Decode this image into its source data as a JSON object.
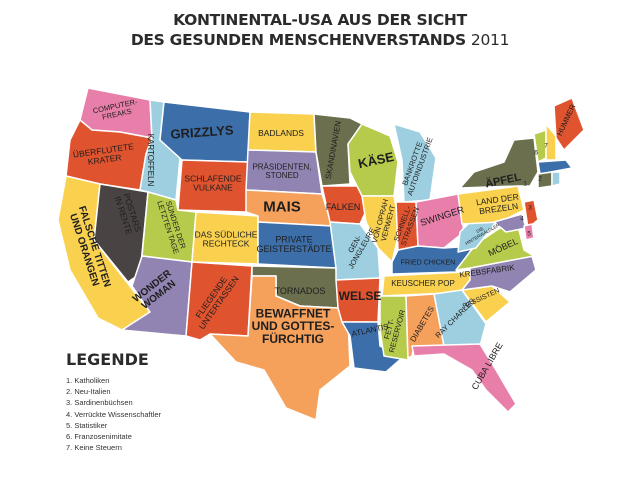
{
  "title": {
    "line1": "KONTINENTAL-USA AUS DER SICHT",
    "line2": "DES GESUNDEN MENSCHENVERSTANDS",
    "year": "2011"
  },
  "legend": {
    "heading": "LEGENDE",
    "items": [
      "1. Katholiken",
      "2. Neu-Italien",
      "3. Sardinenbüchsen",
      "4. Verrückte Wissenschaftler",
      "5. Statistiker",
      "6. Franzosenimitate",
      "7. Keine Steuern"
    ]
  },
  "labels": {
    "wa": [
      "COMPUTER-",
      "FREAKS"
    ],
    "or": [
      "ÜBERFLUTETE",
      "KRATER"
    ],
    "ca": [
      "FALSCHE TITTEN",
      "UND ORANGEN"
    ],
    "nv": [
      "POSTARS",
      "IN RENTE"
    ],
    "id": [
      "KARTOFFELN"
    ],
    "mt": [
      "GRIZZLYS"
    ],
    "wy": [
      "SCHLAFENDE",
      "VULKANE"
    ],
    "ut": [
      "SÜNDER DER",
      "LETZTEN TAGE"
    ],
    "az": [
      "WONDER",
      "WOMAN"
    ],
    "co": [
      "DAS SÜDLICHE",
      "RECHTECK"
    ],
    "nm": [
      "FLIEGENDE",
      "UNTERTASSEN"
    ],
    "nd": [
      "BADLANDS"
    ],
    "sd": [
      "PRÄSIDENTEN,",
      "STONED"
    ],
    "ne": [
      "MAIS"
    ],
    "ks": [
      "PRIVATE",
      "GEISTERSTÄDTE"
    ],
    "ok": [
      "TORNADOS"
    ],
    "tx": [
      "BEWAFFNET",
      "UND GOTTES-",
      "FÜRCHTIG"
    ],
    "mn": [
      "SKANDINAVIEN"
    ],
    "ia": [
      "FALKEN"
    ],
    "mo": [
      "GEN-",
      "JONGLEURE"
    ],
    "ar": [
      "WELSE"
    ],
    "la": [
      "ATLANTIS"
    ],
    "wi": [
      "KÄSE"
    ],
    "il": [
      "VON OPRAH",
      "VERWEHT"
    ],
    "mi": [
      "BANKROTTE",
      "AUTOINDUSTRIE"
    ],
    "in": [
      "SCHNELL-",
      "STRASSEN"
    ],
    "oh": [
      "SWINGER"
    ],
    "ky": [
      "FRIED CHICKEN"
    ],
    "tn": [
      "KEUSCHER POP"
    ],
    "ms": [
      "FETT-",
      "RESERVOIR"
    ],
    "al": [
      "DIABETES"
    ],
    "ga": [
      "RAY CHARLES"
    ],
    "fl": [
      "CUBA LIBRE"
    ],
    "sc": [
      "RASSISTEN"
    ],
    "nc": [
      "KREBSFABRIK"
    ],
    "va": [
      "MÖBEL"
    ],
    "wv": [
      "DIE",
      "HINTERWÄLDLER"
    ],
    "pa": [
      "LAND DER",
      "BREZELN"
    ],
    "ny": [
      "ÄPFEL"
    ],
    "me": [
      "HUMMER"
    ],
    "n1": [
      "1"
    ],
    "n2": [
      "2"
    ],
    "n3": [
      "3"
    ],
    "n4": [
      "4"
    ],
    "n5": [
      "5"
    ],
    "n6": [
      "6"
    ],
    "n7": [
      "7"
    ]
  },
  "colors": {
    "wa": "#e87fab",
    "or": "#e0532f",
    "ca": "#f9d14f",
    "nv": "#4a4343",
    "id": "#9dcfe0",
    "mt": "#3c6ea9",
    "wy": "#e0532f",
    "ut": "#b6cb4c",
    "az": "#9184b2",
    "co": "#f9d14f",
    "nm": "#e0532f",
    "nd": "#f9d14f",
    "sd": "#9184b2",
    "ne": "#f5a05b",
    "ks": "#3c6ea9",
    "ok": "#6b6f4e",
    "tx": "#f5a05b",
    "mn": "#6b6f4e",
    "ia": "#e0532f",
    "mo": "#9dcfe0",
    "ar": "#e0532f",
    "la": "#3c6ea9",
    "wi": "#b6cb4c",
    "il": "#f9d14f",
    "mi": "#9dcfe0",
    "in": "#e0532f",
    "oh": "#e87fab",
    "ky": "#3c6ea9",
    "tn": "#f9d14f",
    "ms": "#b6cb4c",
    "al": "#f5a05b",
    "ga": "#9dcfe0",
    "fl": "#e87fab",
    "sc": "#f9d14f",
    "nc": "#9184b2",
    "va": "#b6cb4c",
    "wv": "#9dcfe0",
    "pa": "#f9d14f",
    "ny": "#6b6f4e",
    "me": "#e0532f",
    "vt": "#b6cb4c",
    "nh": "#f9d14f",
    "ma": "#3c6ea9",
    "ri": "#9dcfe0",
    "ct": "#6b6f4e",
    "nj": "#e0532f",
    "de": "#e87fab",
    "md": "#9184b2"
  }
}
